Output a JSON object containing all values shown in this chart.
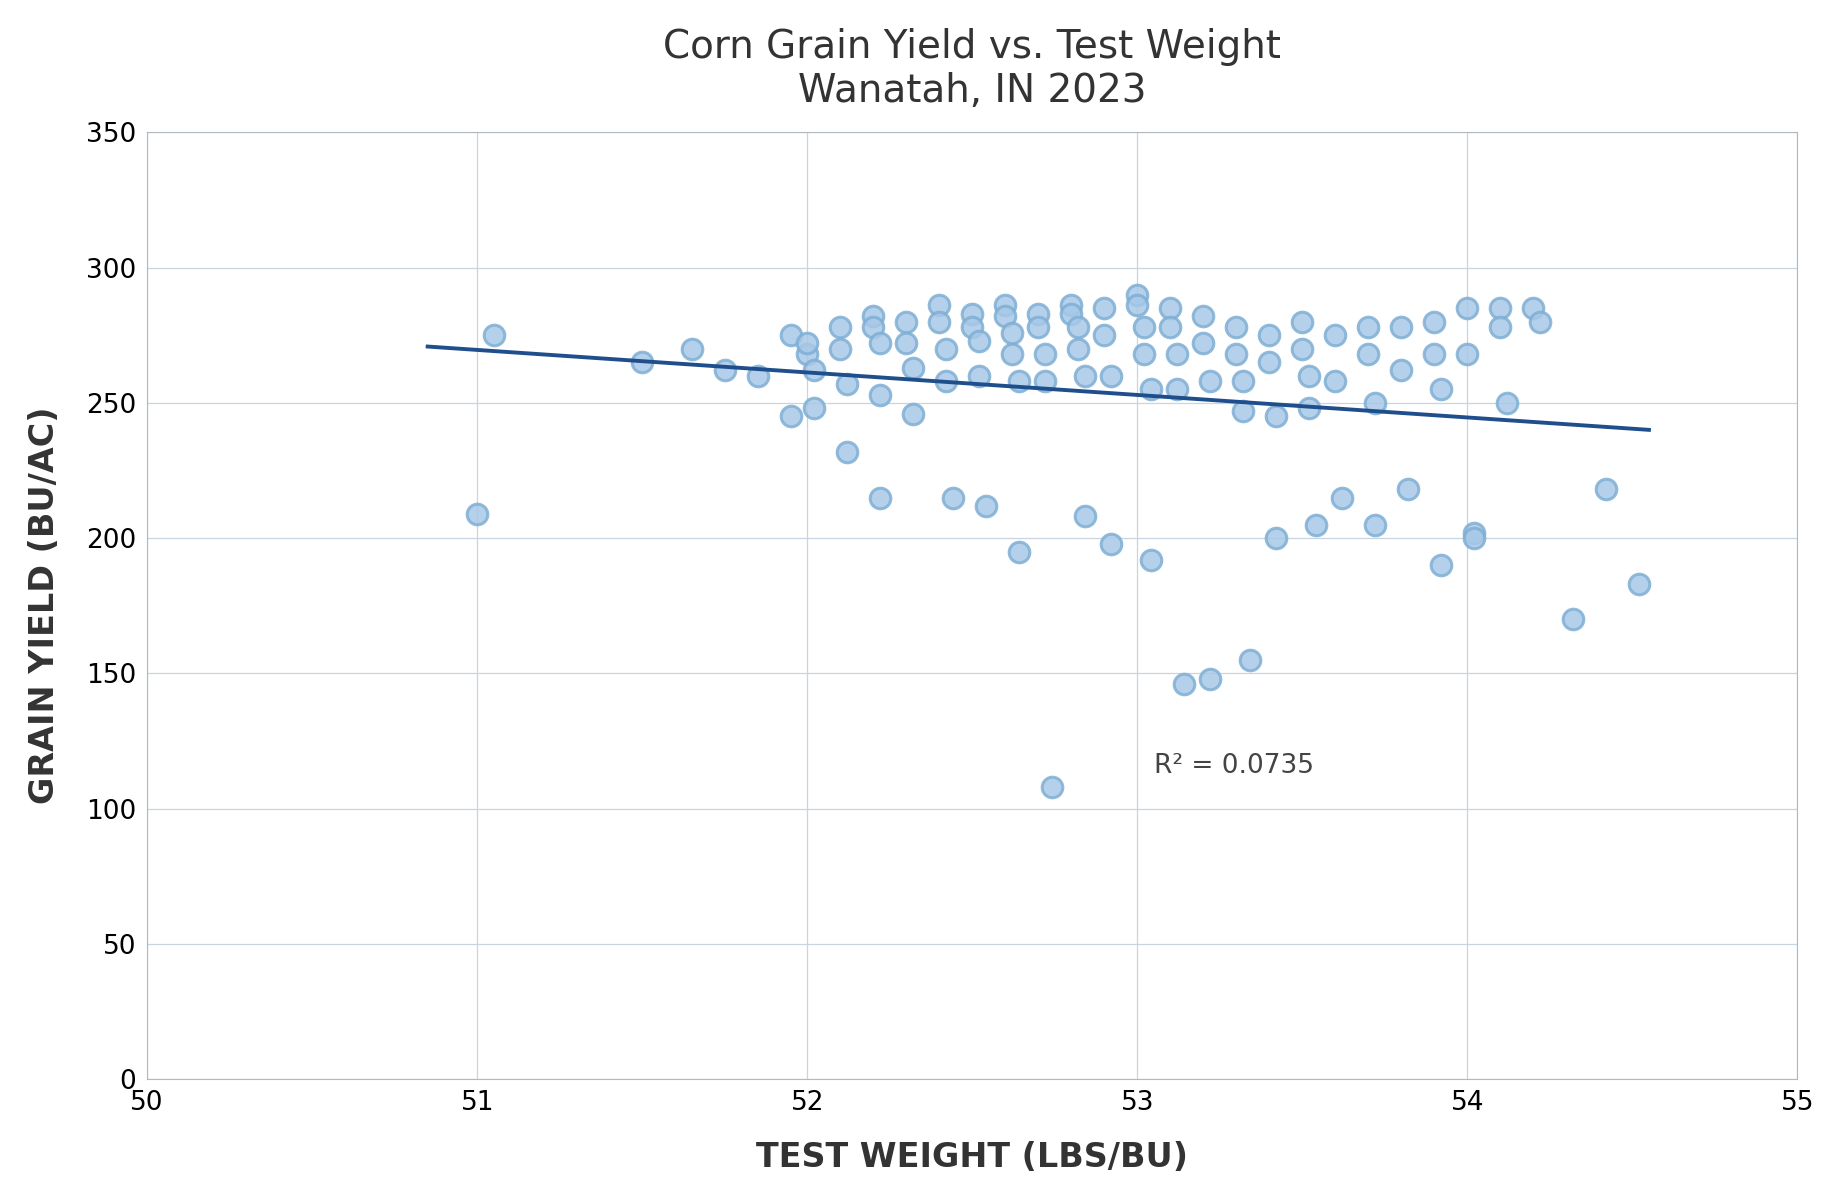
{
  "title": "Corn Grain Yield vs. Test Weight\nWanatah, IN 2023",
  "xlabel": "TEST WEIGHT (LBS/BU)",
  "ylabel": "GRAIN YIELD (BU/AC)",
  "xlim": [
    50,
    55
  ],
  "ylim": [
    0,
    350
  ],
  "xticks": [
    50,
    51,
    52,
    53,
    54,
    55
  ],
  "yticks": [
    0,
    50,
    100,
    150,
    200,
    250,
    300,
    350
  ],
  "r2_text": "R² = 0.0735",
  "r2_x": 53.05,
  "r2_y": 113,
  "scatter_edge_color": "#7fafd4",
  "scatter_face_color": "#a8c8e8",
  "line_color": "#1f4e8c",
  "marker_size": 220,
  "marker_linewidth": 2.2,
  "line_x_start": 50.85,
  "line_x_end": 54.55,
  "x": [
    51.0,
    51.05,
    51.5,
    51.65,
    51.75,
    51.85,
    51.95,
    51.95,
    52.0,
    52.0,
    52.02,
    52.02,
    52.1,
    52.1,
    52.12,
    52.12,
    52.2,
    52.2,
    52.22,
    52.22,
    52.22,
    52.3,
    52.3,
    52.32,
    52.32,
    52.4,
    52.4,
    52.42,
    52.42,
    52.44,
    52.5,
    52.5,
    52.52,
    52.52,
    52.54,
    52.6,
    52.6,
    52.62,
    52.62,
    52.64,
    52.64,
    52.7,
    52.7,
    52.72,
    52.72,
    52.74,
    52.8,
    52.8,
    52.82,
    52.82,
    52.84,
    52.84,
    52.9,
    52.9,
    52.92,
    52.92,
    53.0,
    53.0,
    53.02,
    53.02,
    53.04,
    53.04,
    53.1,
    53.1,
    53.12,
    53.12,
    53.14,
    53.2,
    53.2,
    53.22,
    53.22,
    53.3,
    53.3,
    53.32,
    53.32,
    53.34,
    53.4,
    53.4,
    53.42,
    53.42,
    53.5,
    53.5,
    53.52,
    53.52,
    53.54,
    53.6,
    53.6,
    53.62,
    53.7,
    53.7,
    53.72,
    53.72,
    53.8,
    53.8,
    53.82,
    53.9,
    53.9,
    53.92,
    53.92,
    54.0,
    54.0,
    54.02,
    54.02,
    54.1,
    54.1,
    54.12,
    54.2,
    54.22,
    54.32,
    54.42,
    54.52
  ],
  "y": [
    209.0,
    275.0,
    265.0,
    270.0,
    262.0,
    260.0,
    275.0,
    245.0,
    268.0,
    272.0,
    262.0,
    248.0,
    278.0,
    270.0,
    257.0,
    232.0,
    282.0,
    278.0,
    272.0,
    253.0,
    215.0,
    280.0,
    272.0,
    263.0,
    246.0,
    286.0,
    280.0,
    270.0,
    258.0,
    215.0,
    283.0,
    278.0,
    273.0,
    260.0,
    212.0,
    286.0,
    282.0,
    276.0,
    268.0,
    258.0,
    195.0,
    283.0,
    278.0,
    268.0,
    258.0,
    108.0,
    286.0,
    283.0,
    278.0,
    270.0,
    260.0,
    208.0,
    285.0,
    275.0,
    260.0,
    198.0,
    290.0,
    286.0,
    278.0,
    268.0,
    255.0,
    192.0,
    285.0,
    278.0,
    268.0,
    255.0,
    146.0,
    282.0,
    272.0,
    258.0,
    148.0,
    278.0,
    268.0,
    258.0,
    247.0,
    155.0,
    275.0,
    265.0,
    245.0,
    200.0,
    280.0,
    270.0,
    260.0,
    248.0,
    205.0,
    275.0,
    258.0,
    215.0,
    278.0,
    268.0,
    250.0,
    205.0,
    278.0,
    262.0,
    218.0,
    280.0,
    268.0,
    255.0,
    190.0,
    285.0,
    268.0,
    202.0,
    200.0,
    285.0,
    278.0,
    250.0,
    285.0,
    280.0,
    170.0,
    218.0,
    183.0
  ]
}
